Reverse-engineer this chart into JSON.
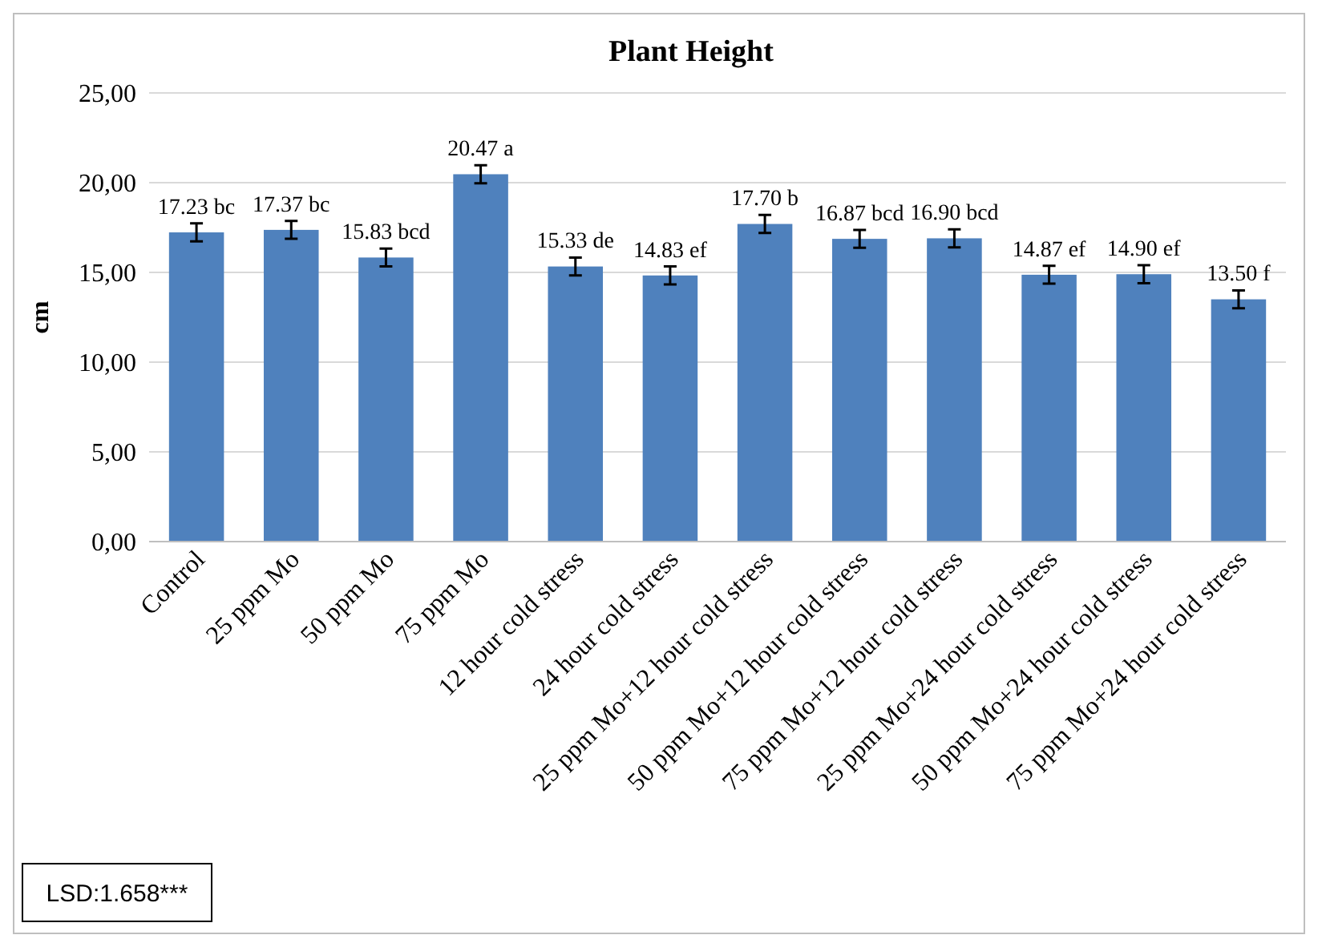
{
  "chart_data": {
    "type": "bar",
    "title": "Plant Height",
    "ylabel": "cm",
    "categories": [
      "Control",
      "25 ppm Mo",
      "50 ppm Mo",
      "75 ppm Mo",
      "12 hour cold stress",
      "24 hour cold stress",
      "25 ppm Mo+12 hour cold stress",
      "50 ppm Mo+12 hour cold stress",
      "75 ppm Mo+12 hour cold stress",
      "25 ppm Mo+24 hour cold stress",
      "50 ppm Mo+24 hour cold stress",
      "75 ppm Mo+24 hour cold stress"
    ],
    "values": [
      17.23,
      17.37,
      15.83,
      20.47,
      15.33,
      14.83,
      17.7,
      16.87,
      16.9,
      14.87,
      14.9,
      13.5
    ],
    "errors": [
      0.5,
      0.5,
      0.5,
      0.5,
      0.5,
      0.5,
      0.5,
      0.5,
      0.5,
      0.5,
      0.5,
      0.5
    ],
    "value_labels": [
      "17.23 bc",
      "17.37 bc",
      "15.83 bcd",
      "20.47 a",
      "15.33 de",
      "14.83 ef",
      "17.70 b",
      "16.87 bcd",
      "16.90 bcd",
      "14.87 ef",
      "14.90 ef",
      "13.50 f"
    ],
    "color": "#4f81bd",
    "ylim": [
      0,
      25
    ],
    "yticks": [
      {
        "value": 0,
        "label": "0,00"
      },
      {
        "value": 5,
        "label": "5,00"
      },
      {
        "value": 10,
        "label": "10,00"
      },
      {
        "value": 15,
        "label": "15,00"
      },
      {
        "value": 20,
        "label": "20,00"
      },
      {
        "value": 25,
        "label": "25,00"
      }
    ],
    "grid": "y",
    "annotations": [
      "LSD:1.658***"
    ]
  }
}
